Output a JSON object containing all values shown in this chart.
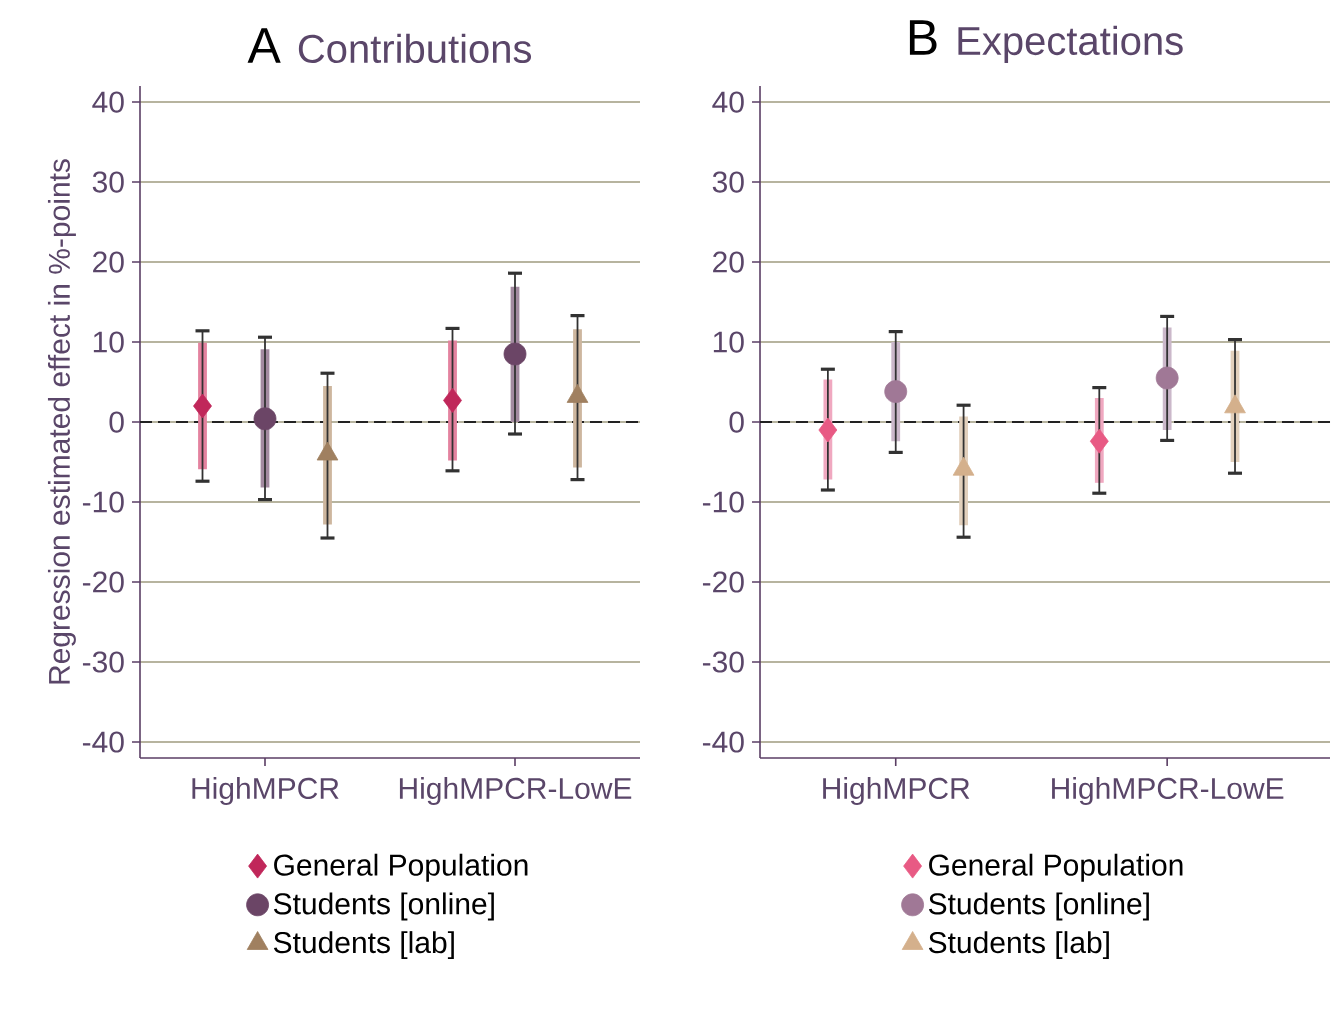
{
  "chart_data": [
    {
      "type": "scatter",
      "title": "Contributions",
      "annotations": [
        "A"
      ],
      "ylabel": "Regression estimated effect in %-points",
      "categories": [
        "HighMPCR",
        "HighMPCR-LowE"
      ],
      "ylim": [
        -42,
        42
      ],
      "yticks": [
        -40,
        -30,
        -20,
        -10,
        0,
        10,
        20,
        30,
        40
      ],
      "grid": "y",
      "legend": "bottom",
      "ref_lines": [
        {
          "axis": "y",
          "value": 0,
          "color": "#222222",
          "line_style": "dashed"
        }
      ],
      "series": [
        {
          "name": "General Population",
          "color": "#c0275a",
          "marker": "diamond",
          "values": [
            2.0,
            2.7
          ],
          "errors": [
            [
              -7.4,
              11.4
            ],
            [
              -6.1,
              11.7
            ]
          ]
        },
        {
          "type": "bar",
          "color": "#e4829f",
          "base": [
            -5.9,
            -4.8
          ],
          "values": [
            15.8,
            15.0
          ]
        },
        {
          "name": "Students [online]",
          "color": "#6b4566",
          "marker": "circle",
          "values": [
            0.4,
            8.5
          ],
          "errors": [
            [
              -9.7,
              10.6
            ],
            [
              -1.5,
              18.6
            ]
          ]
        },
        {
          "type": "bar",
          "color": "#a38aa0",
          "base": [
            -8.2,
            0.0
          ],
          "values": [
            17.3,
            16.9
          ]
        },
        {
          "name": "Students [lab]",
          "color": "#a08060",
          "marker": "triangle",
          "values": [
            -4.0,
            3.2
          ],
          "errors": [
            [
              -14.5,
              6.1
            ],
            [
              -7.2,
              13.3
            ]
          ]
        },
        {
          "type": "bar",
          "color": "#cdb69e",
          "base": [
            -12.8,
            -5.7
          ],
          "values": [
            17.3,
            17.3
          ]
        }
      ]
    },
    {
      "type": "scatter",
      "title": "Expectations",
      "annotations": [
        "B"
      ],
      "categories": [
        "HighMPCR",
        "HighMPCR-LowE"
      ],
      "ylim": [
        -42,
        42
      ],
      "yticks": [
        -40,
        -30,
        -20,
        -10,
        0,
        10,
        20,
        30,
        40
      ],
      "grid": "y",
      "legend": "bottom",
      "ref_lines": [
        {
          "axis": "y",
          "value": 0,
          "color": "#222222",
          "line_style": "dashed"
        }
      ],
      "series": [
        {
          "name": "General Population",
          "color": "#e85a84",
          "marker": "diamond",
          "values": [
            -1.0,
            -2.4
          ],
          "errors": [
            [
              -8.5,
              6.6
            ],
            [
              -8.9,
              4.3
            ]
          ]
        },
        {
          "type": "bar",
          "color": "#f0a8c0",
          "base": [
            -7.2,
            -7.6
          ],
          "values": [
            12.5,
            10.6
          ]
        },
        {
          "name": "Students [online]",
          "color": "#a07896",
          "marker": "circle",
          "values": [
            3.8,
            5.5
          ],
          "errors": [
            [
              -3.8,
              11.3
            ],
            [
              -2.3,
              13.2
            ]
          ]
        },
        {
          "type": "bar",
          "color": "#cbb8ca",
          "base": [
            -2.4,
            -1.0
          ],
          "values": [
            12.4,
            12.8
          ]
        },
        {
          "name": "Students [lab]",
          "color": "#d4b08c",
          "marker": "triangle",
          "values": [
            -5.9,
            1.9
          ],
          "errors": [
            [
              -14.4,
              2.1
            ],
            [
              -6.4,
              10.3
            ]
          ]
        },
        {
          "type": "bar",
          "color": "#e2d0bc",
          "base": [
            -12.9,
            -5.0
          ],
          "values": [
            13.6,
            13.9
          ]
        }
      ]
    }
  ]
}
